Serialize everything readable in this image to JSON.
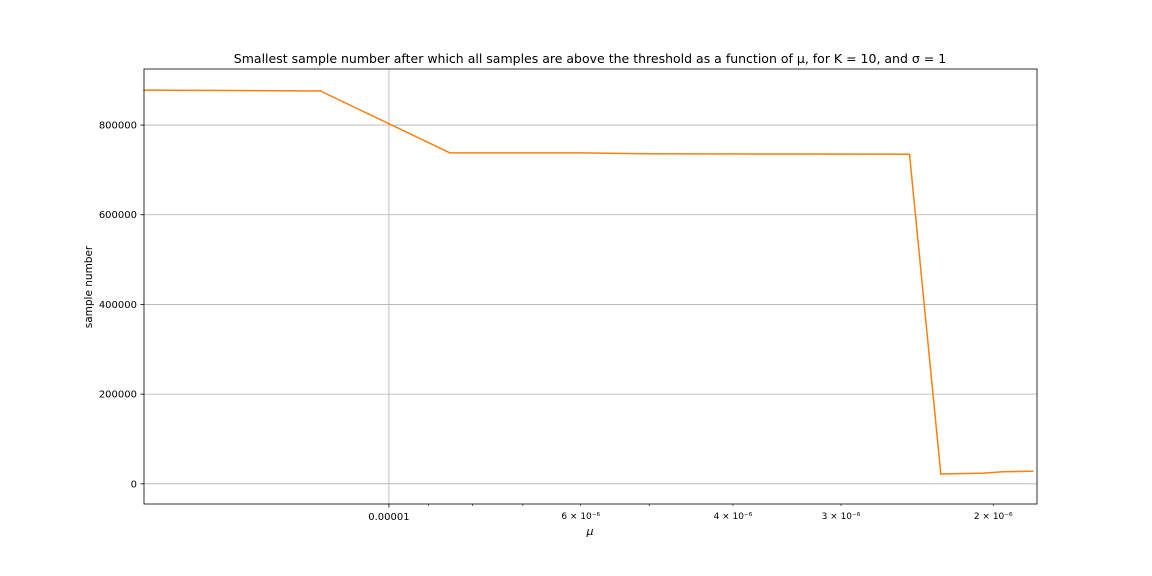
{
  "chart_data": {
    "type": "line",
    "title": "Smallest sample number after which all samples are above the threshold as a function of μ, for K = 10, and σ = 1",
    "xlabel": "μ",
    "ylabel": "sample number",
    "x_scale": "log",
    "x_inverted": true,
    "xlim": [
      1.92e-05,
      1.78e-06
    ],
    "ylim": [
      -45000,
      925000
    ],
    "grid": true,
    "x_major_ticks": [
      {
        "value": 1e-05,
        "label": "0.00001"
      }
    ],
    "x_minor_ticks": [
      {
        "value": 6e-06,
        "label": "6 × 10⁻⁶"
      },
      {
        "value": 4e-06,
        "label": "4 × 10⁻⁶"
      },
      {
        "value": 3e-06,
        "label": "3 × 10⁻⁶"
      },
      {
        "value": 2e-06,
        "label": "2 × 10⁻⁶"
      }
    ],
    "x_unlabeled_minor_ticks": [
      9e-06,
      8e-06,
      7e-06,
      5e-06
    ],
    "y_ticks": [
      {
        "value": 0,
        "label": "0"
      },
      {
        "value": 200000,
        "label": "200000"
      },
      {
        "value": 400000,
        "label": "400000"
      },
      {
        "value": 600000,
        "label": "600000"
      },
      {
        "value": 800000,
        "label": "800000"
      }
    ],
    "series": [
      {
        "color": "#ff7f0e",
        "points": [
          {
            "x": 1.92e-05,
            "y": 878000
          },
          {
            "x": 1.2e-05,
            "y": 876000
          },
          {
            "x": 8.5e-06,
            "y": 738000
          },
          {
            "x": 6e-06,
            "y": 738000
          },
          {
            "x": 5e-06,
            "y": 736000
          },
          {
            "x": 2.5e-06,
            "y": 735000
          },
          {
            "x": 2.3e-06,
            "y": 22000
          },
          {
            "x": 2.05e-06,
            "y": 24000
          },
          {
            "x": 1.95e-06,
            "y": 27000
          },
          {
            "x": 1.8e-06,
            "y": 28000
          }
        ]
      }
    ]
  }
}
